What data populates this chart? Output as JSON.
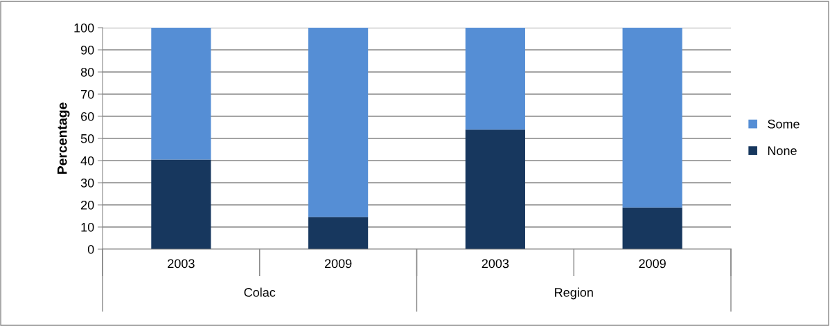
{
  "chart_data": {
    "type": "bar",
    "stacked": true,
    "ylabel": "Percentage",
    "categories": [
      "2003",
      "2009",
      "2003",
      "2009"
    ],
    "annotations": [
      "Colac",
      "Region"
    ],
    "series": [
      {
        "name": "None",
        "color": "#17375e",
        "values": [
          40.5,
          14.5,
          54,
          18.8
        ]
      },
      {
        "name": "Some",
        "color": "#558ed5",
        "values": [
          59.5,
          85.5,
          46,
          81.2
        ]
      }
    ],
    "ylim": [
      0,
      100
    ],
    "yticks": [
      0,
      10,
      20,
      30,
      40,
      50,
      60,
      70,
      80,
      90,
      100
    ],
    "grid": "y",
    "legend": "right"
  }
}
